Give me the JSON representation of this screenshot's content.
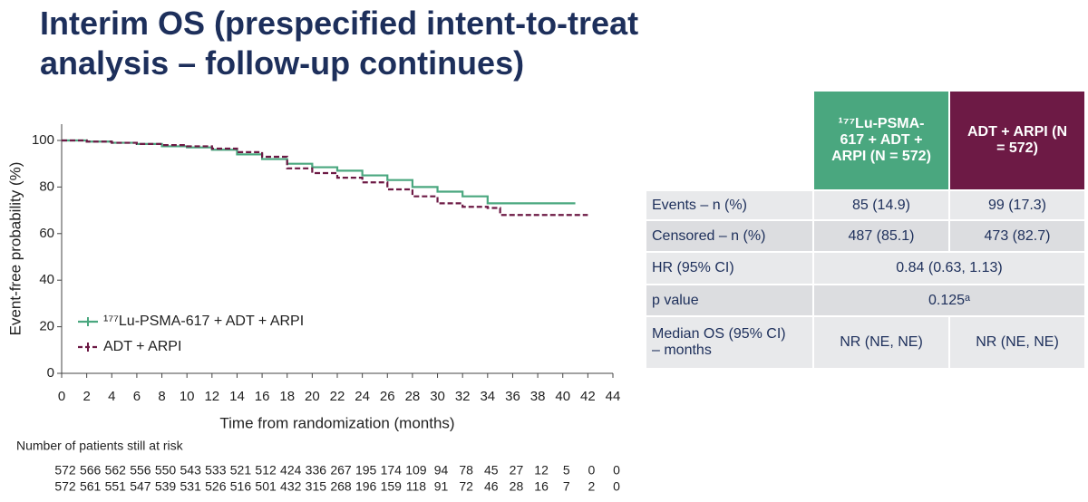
{
  "title": "Interim OS (prespecified intent-to-treat analysis – follow-up continues)",
  "chart_data": {
    "type": "line",
    "step": true,
    "ylabel": "Event-free probability (%)",
    "xlabel": "Time from randomization (months)",
    "x": [
      0,
      2,
      4,
      6,
      8,
      10,
      12,
      14,
      16,
      18,
      20,
      22,
      24,
      26,
      28,
      30,
      32,
      34,
      35,
      36,
      38,
      40,
      41,
      42
    ],
    "series": [
      {
        "name": "¹⁷⁷Lu-PSMA-617 + ADT + ARPI",
        "color": "#4aa77f",
        "dash": false,
        "values": [
          100,
          99.5,
          99,
          98.5,
          97.5,
          97,
          96,
          94,
          92,
          90,
          88.5,
          87,
          85,
          83,
          80,
          78,
          76,
          73,
          73,
          73,
          73,
          73,
          73,
          null
        ]
      },
      {
        "name": "ADT + ARPI",
        "color": "#6d1a45",
        "dash": true,
        "values": [
          100,
          99.5,
          99,
          98.5,
          98,
          97.5,
          96.5,
          95,
          93,
          88,
          86,
          84,
          82,
          79,
          76,
          73,
          71.5,
          71,
          68,
          68,
          68,
          68,
          68,
          68
        ]
      }
    ],
    "xlim": [
      0,
      44
    ],
    "xticks": [
      0,
      2,
      4,
      6,
      8,
      10,
      12,
      14,
      16,
      18,
      20,
      22,
      24,
      26,
      28,
      30,
      32,
      34,
      36,
      38,
      40,
      42,
      44
    ],
    "ylim": [
      0,
      107
    ],
    "yticks": [
      0,
      20,
      40,
      60,
      80,
      100
    ],
    "grid": false,
    "legend": "lower-left"
  },
  "risk_table": {
    "title": "Number of patients still at risk",
    "rows": [
      [
        572,
        566,
        562,
        556,
        550,
        543,
        533,
        521,
        512,
        424,
        336,
        267,
        195,
        174,
        109,
        94,
        78,
        45,
        27,
        12,
        5,
        0,
        0
      ],
      [
        572,
        561,
        551,
        547,
        539,
        531,
        526,
        516,
        501,
        432,
        315,
        268,
        196,
        159,
        118,
        91,
        72,
        46,
        28,
        16,
        7,
        2,
        0
      ]
    ]
  },
  "table": {
    "header": [
      "¹⁷⁷Lu-PSMA-617 + ADT + ARPI (N = 572)",
      "ADT + ARPI (N = 572)"
    ],
    "rows": [
      [
        "Events – n (%)",
        "85 (14.9)",
        "99 (17.3)"
      ],
      [
        "Censored – n (%)",
        "487 (85.1)",
        "473 (82.7)"
      ],
      [
        "HR (95% CI)",
        "0.84 (0.63, 1.13)"
      ],
      [
        "p value",
        "0.125ᵃ"
      ],
      [
        "Median OS (95% CI) – months",
        "NR (NE, NE)",
        "NR (NE, NE)"
      ]
    ]
  }
}
